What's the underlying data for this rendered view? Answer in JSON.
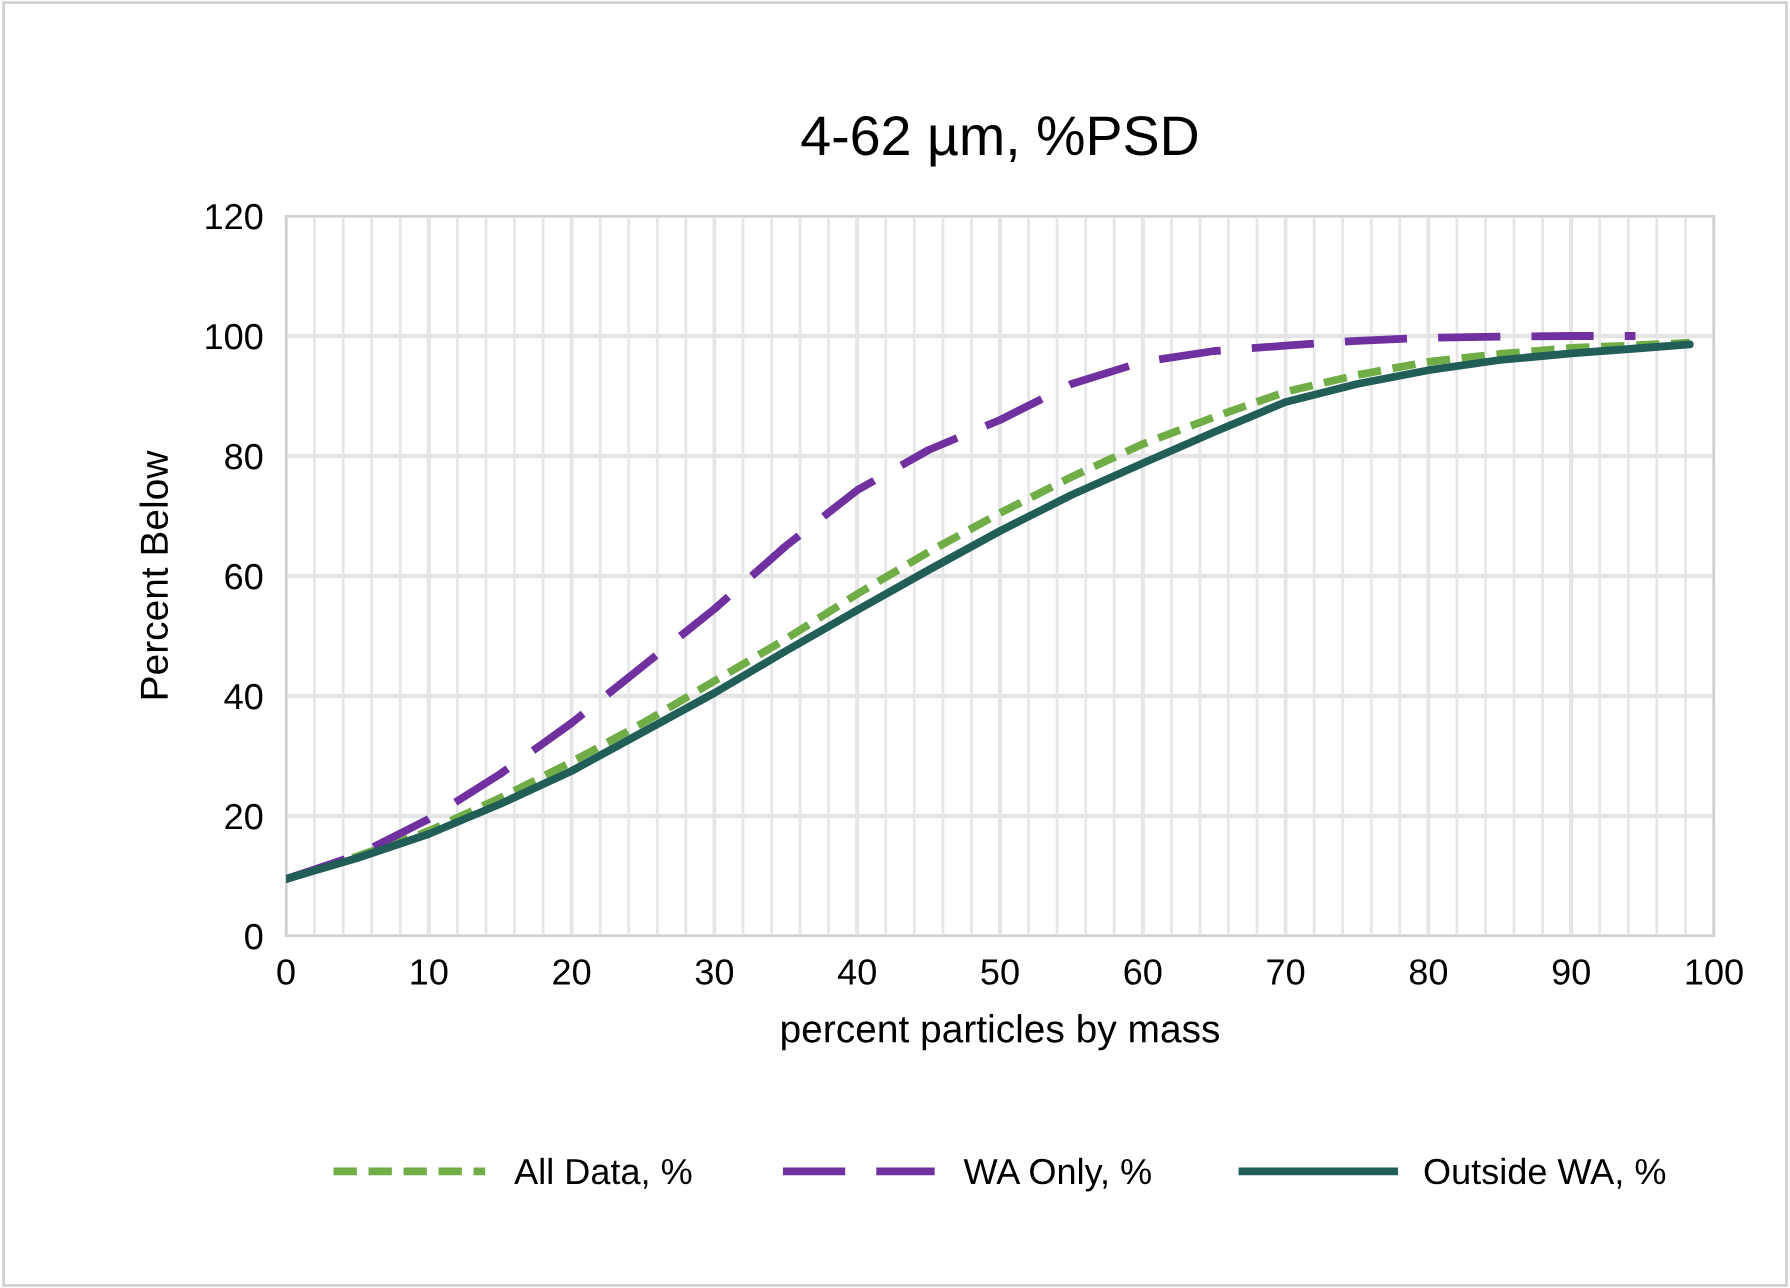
{
  "chart_data": {
    "type": "line",
    "title": "4-62 µm, %PSD",
    "xlabel": "percent particles by mass",
    "ylabel": "Percent Below",
    "xlim": [
      0,
      100
    ],
    "ylim": [
      0,
      120
    ],
    "xticks": [
      0,
      {
        "value": 2,
        "label": null
      },
      {
        "value": 4,
        "label": null
      },
      {
        "value": 6,
        "label": null
      },
      {
        "value": 8,
        "label": null
      },
      10,
      {
        "value": 12,
        "label": null
      },
      {
        "value": 14,
        "label": null
      },
      {
        "value": 16,
        "label": null
      },
      {
        "value": 18,
        "label": null
      },
      20,
      {
        "value": 22,
        "label": null
      },
      {
        "value": 24,
        "label": null
      },
      {
        "value": 26,
        "label": null
      },
      {
        "value": 28,
        "label": null
      },
      30,
      {
        "value": 32,
        "label": null
      },
      {
        "value": 34,
        "label": null
      },
      {
        "value": 36,
        "label": null
      },
      {
        "value": 38,
        "label": null
      },
      40,
      {
        "value": 42,
        "label": null
      },
      {
        "value": 44,
        "label": null
      },
      {
        "value": 46,
        "label": null
      },
      {
        "value": 48,
        "label": null
      },
      50,
      {
        "value": 52,
        "label": null
      },
      {
        "value": 54,
        "label": null
      },
      {
        "value": 56,
        "label": null
      },
      {
        "value": 58,
        "label": null
      },
      60,
      {
        "value": 62,
        "label": null
      },
      {
        "value": 64,
        "label": null
      },
      {
        "value": 66,
        "label": null
      },
      {
        "value": 68,
        "label": null
      },
      70,
      {
        "value": 72,
        "label": null
      },
      {
        "value": 74,
        "label": null
      },
      {
        "value": 76,
        "label": null
      },
      {
        "value": 78,
        "label": null
      },
      80,
      {
        "value": 82,
        "label": null
      },
      {
        "value": 84,
        "label": null
      },
      {
        "value": 86,
        "label": null
      },
      {
        "value": 88,
        "label": null
      },
      90,
      {
        "value": 92,
        "label": null
      },
      {
        "value": 94,
        "label": null
      },
      {
        "value": 96,
        "label": null
      },
      {
        "value": 98,
        "label": null
      },
      100
    ],
    "yticks": [
      0,
      20,
      40,
      60,
      80,
      100,
      120
    ],
    "grid": true,
    "legend": "bottom",
    "marker": "none",
    "series": [
      {
        "name": "All Data, %",
        "color": "#70ad47",
        "line_style": "dotted",
        "x": [
          0,
          5,
          10,
          15,
          20,
          25,
          30,
          35,
          40,
          45,
          50,
          55,
          60,
          65,
          70,
          75,
          80,
          85,
          90,
          95,
          98.3
        ],
        "values": [
          9.5,
          13.3,
          17.5,
          23,
          29,
          35.5,
          42.5,
          49.5,
          57,
          64,
          70.5,
          76.5,
          82,
          86.5,
          90.7,
          93.5,
          95.7,
          97,
          98,
          98.5,
          98.9
        ]
      },
      {
        "name": "WA Only, %",
        "color": "#7030a0",
        "line_style": "dashed",
        "x": [
          0,
          5,
          10,
          15,
          20,
          25,
          30,
          35,
          40,
          45,
          50,
          55,
          60,
          65,
          70,
          75,
          80,
          85,
          90,
          94.5
        ],
        "values": [
          9.5,
          13.5,
          19.5,
          27,
          35.5,
          45,
          54.5,
          65,
          74.3,
          81,
          86,
          92,
          95.7,
          97.5,
          98.4,
          99.2,
          99.7,
          99.9,
          100,
          100
        ]
      },
      {
        "name": "Outside WA, %",
        "color": "#225e58",
        "line_style": "solid",
        "x": [
          0,
          5,
          10,
          15,
          20,
          25,
          30,
          35,
          40,
          45,
          50,
          55,
          60,
          65,
          70,
          75,
          80,
          85,
          90,
          95,
          98.3
        ],
        "values": [
          9.5,
          13,
          17,
          22,
          27.5,
          34,
          40.5,
          47.5,
          54.3,
          61,
          67.5,
          73.5,
          78.8,
          84,
          89,
          92,
          94.3,
          96,
          97.1,
          98,
          98.6
        ]
      }
    ]
  }
}
